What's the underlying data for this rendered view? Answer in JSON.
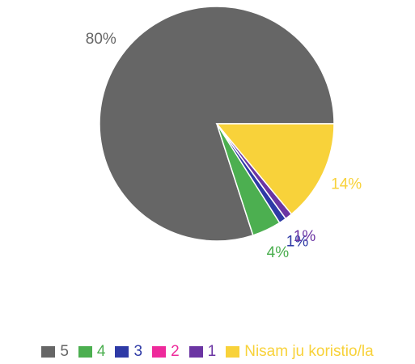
{
  "chart_data": {
    "type": "pie",
    "categories": [
      "5",
      "4",
      "3",
      "2",
      "1",
      "Nisam ju koristio/la"
    ],
    "values": [
      80,
      4,
      1,
      0,
      1,
      14
    ],
    "value_labels": [
      "80%",
      "4%",
      "1%",
      null,
      "1%",
      "14%"
    ],
    "colors": [
      "#666666",
      "#4caf50",
      "#2e3aa6",
      "#ee2a9b",
      "#6b35a3",
      "#f8d23a"
    ],
    "legend": "bottom"
  }
}
